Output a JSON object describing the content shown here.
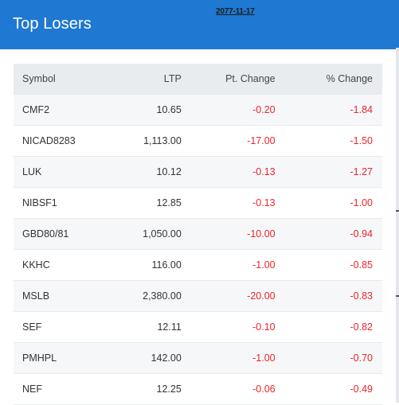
{
  "header": {
    "title": "Top Losers",
    "date": "2077-11-17"
  },
  "table": {
    "columns": [
      "Symbol",
      "LTP",
      "Pt. Change",
      "% Change"
    ],
    "rows": [
      {
        "symbol": "CMF2",
        "ltp": "10.65",
        "pt_change": "-0.20",
        "pct_change": "-1.84"
      },
      {
        "symbol": "NICAD8283",
        "ltp": "1,113.00",
        "pt_change": "-17.00",
        "pct_change": "-1.50"
      },
      {
        "symbol": "LUK",
        "ltp": "10.12",
        "pt_change": "-0.13",
        "pct_change": "-1.27"
      },
      {
        "symbol": "NIBSF1",
        "ltp": "12.85",
        "pt_change": "-0.13",
        "pct_change": "-1.00"
      },
      {
        "symbol": "GBD80/81",
        "ltp": "1,050.00",
        "pt_change": "-10.00",
        "pct_change": "-0.94"
      },
      {
        "symbol": "KKHC",
        "ltp": "116.00",
        "pt_change": "-1.00",
        "pct_change": "-0.85"
      },
      {
        "symbol": "MSLB",
        "ltp": "2,380.00",
        "pt_change": "-20.00",
        "pct_change": "-0.83"
      },
      {
        "symbol": "SEF",
        "ltp": "12.11",
        "pt_change": "-0.10",
        "pct_change": "-0.82"
      },
      {
        "symbol": "PMHPL",
        "ltp": "142.00",
        "pt_change": "-1.00",
        "pct_change": "-0.70"
      },
      {
        "symbol": "NEF",
        "ltp": "12.25",
        "pt_change": "-0.06",
        "pct_change": "-0.49"
      }
    ]
  },
  "colors": {
    "header": "#1f78d1",
    "negative": "#e8262b",
    "table_header": "#e9ecef",
    "row_striped": "#f6f7f9"
  }
}
